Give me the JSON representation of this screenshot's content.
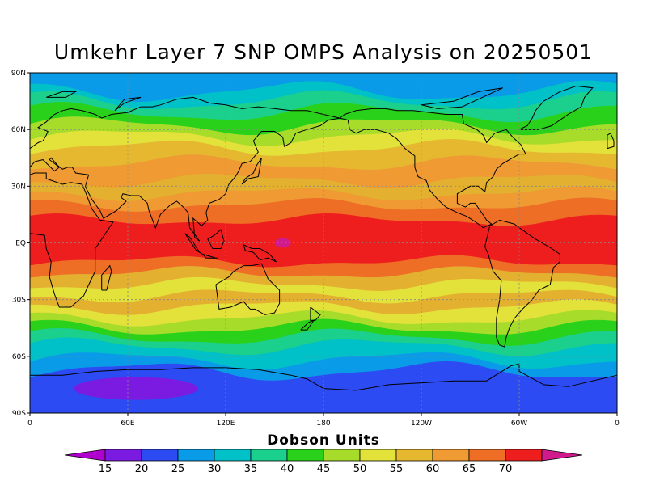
{
  "title": "Umkehr Layer 7 SNP OMPS Analysis on 20250501",
  "map_data": {
    "type": "contour-map",
    "projection": "equirectangular",
    "lon_range": [
      0,
      360
    ],
    "lat_range": [
      -90,
      90
    ],
    "grid_lines": "dotted",
    "y_ticks": [
      {
        "lat": 90,
        "label": "90N"
      },
      {
        "lat": 60,
        "label": "60N"
      },
      {
        "lat": 30,
        "label": "30N"
      },
      {
        "lat": 0,
        "label": "EQ"
      },
      {
        "lat": -30,
        "label": "30S"
      },
      {
        "lat": -60,
        "label": "60S"
      },
      {
        "lat": -90,
        "label": "90S"
      }
    ],
    "x_ticks": [
      {
        "lon": 0,
        "label": "0"
      },
      {
        "lon": 60,
        "label": "60E"
      },
      {
        "lon": 120,
        "label": "120E"
      },
      {
        "lon": 180,
        "label": "180"
      },
      {
        "lon": 240,
        "label": "120W"
      },
      {
        "lon": 300,
        "label": "60W"
      },
      {
        "lon": 360,
        "label": "0"
      }
    ],
    "bands": [
      {
        "lat1": 90,
        "lat2": 80,
        "color": "#0a9be8"
      },
      {
        "lat1": 80,
        "lat2": 75,
        "color": "#00c0c8"
      },
      {
        "lat1": 75,
        "lat2": 69,
        "color": "#1ad08c"
      },
      {
        "lat1": 69,
        "lat2": 62,
        "color": "#2ad11a"
      },
      {
        "lat1": 62,
        "lat2": 56,
        "color": "#a8dc2a"
      },
      {
        "lat1": 56,
        "lat2": 50,
        "color": "#e3e23a"
      },
      {
        "lat1": 50,
        "lat2": 42,
        "color": "#e5b830"
      },
      {
        "lat1": 42,
        "lat2": 33,
        "color": "#ef9a33"
      },
      {
        "lat1": 33,
        "lat2": 26,
        "color": "#e3b02f"
      },
      {
        "lat1": 26,
        "lat2": 20,
        "color": "#ef9a33"
      },
      {
        "lat1": 20,
        "lat2": 12,
        "color": "#ee6e25"
      },
      {
        "lat1": 12,
        "lat2": -10,
        "color": "#ee1e1e"
      },
      {
        "lat1": -10,
        "lat2": -16,
        "color": "#ee6e25"
      },
      {
        "lat1": -16,
        "lat2": -22,
        "color": "#e3b02f"
      },
      {
        "lat1": -22,
        "lat2": -28,
        "color": "#e3e23a"
      },
      {
        "lat1": -28,
        "lat2": -34,
        "color": "#e3b02f"
      },
      {
        "lat1": -34,
        "lat2": -40,
        "color": "#e3e23a"
      },
      {
        "lat1": -40,
        "lat2": -45,
        "color": "#a8dc2a"
      },
      {
        "lat1": -45,
        "lat2": -50,
        "color": "#2ad11a"
      },
      {
        "lat1": -50,
        "lat2": -55,
        "color": "#1ad08c"
      },
      {
        "lat1": -55,
        "lat2": -62,
        "color": "#00c0c8"
      },
      {
        "lat1": -62,
        "lat2": -68,
        "color": "#0a9be8"
      },
      {
        "lat1": -68,
        "lat2": -90,
        "color": "#2d4bf2"
      }
    ],
    "features": [
      {
        "name": "antarctic-minimum",
        "lon": 65,
        "lat": -77,
        "rlon": 38,
        "rlat": 6,
        "color": "#7b1ae0"
      },
      {
        "name": "pacific-maximum",
        "lon": 155,
        "lat": 0,
        "rlon": 5,
        "rlat": 2.5,
        "color": "#d01b8c"
      }
    ]
  },
  "colorbar": {
    "title": "Dobson Units",
    "labels": [
      "15",
      "20",
      "25",
      "30",
      "35",
      "40",
      "45",
      "50",
      "55",
      "60",
      "65",
      "70"
    ],
    "colors": [
      "#7b1ae0",
      "#2d4bf2",
      "#0a9be8",
      "#00c0c8",
      "#1ad08c",
      "#2ad11a",
      "#a8dc2a",
      "#e3e23a",
      "#e5b830",
      "#ef9a33",
      "#ee6e25",
      "#ee1e1e"
    ],
    "under_color": "#b000d0",
    "over_color": "#d01b8c"
  }
}
